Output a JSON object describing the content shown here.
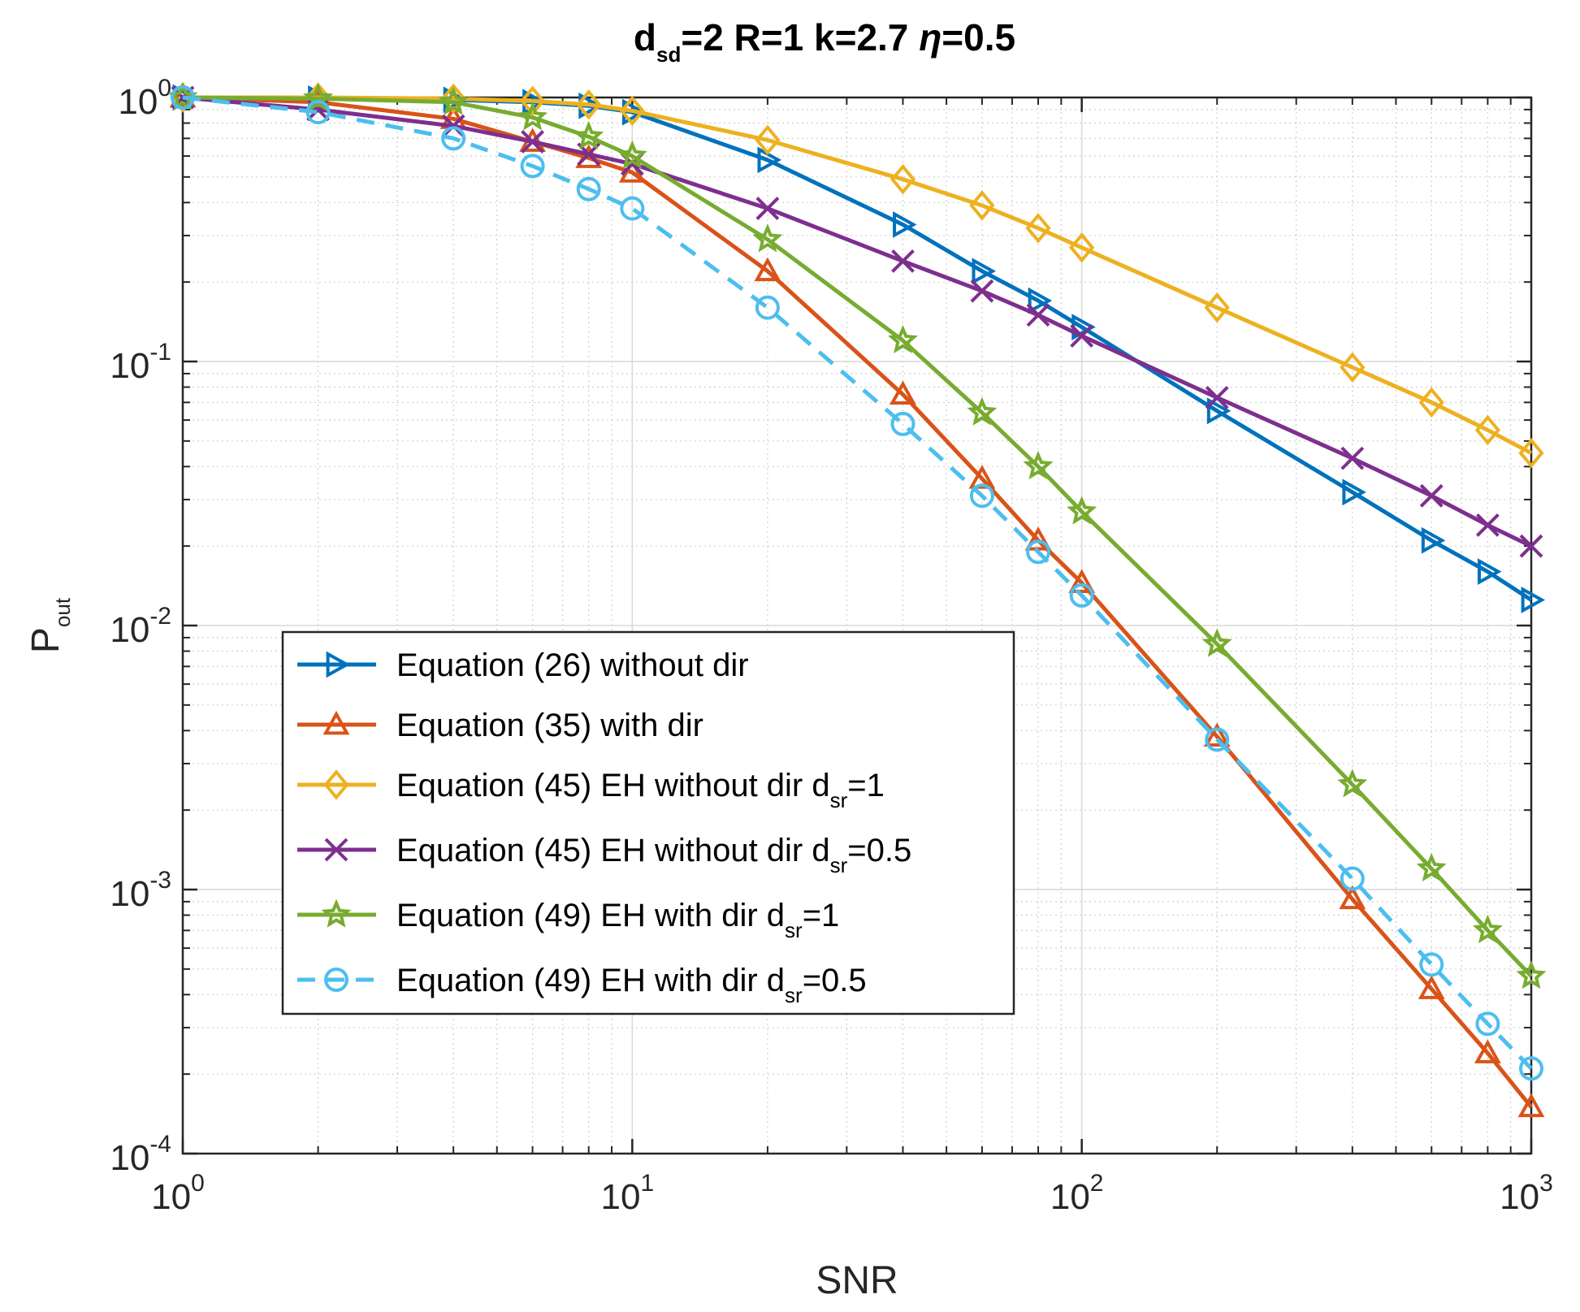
{
  "chart_data": {
    "type": "line",
    "title": {
      "parts": [
        {
          "text": "d",
          "style": "normal"
        },
        {
          "text": "sd",
          "style": "sub"
        },
        {
          "text": "=2 R=1 k=2.7 ",
          "style": "normal"
        },
        {
          "text": "η",
          "style": "italic"
        },
        {
          "text": "=0.5",
          "style": "normal"
        }
      ]
    },
    "xlabel": "SNR",
    "ylabel": {
      "base": "P",
      "sub": "out"
    },
    "xscale": "log",
    "yscale": "log",
    "xlim": [
      1,
      1000
    ],
    "ylim": [
      0.0001,
      1
    ],
    "x_ticks": [
      {
        "value": 1,
        "base": "10",
        "exp": "0"
      },
      {
        "value": 10,
        "base": "10",
        "exp": "1"
      },
      {
        "value": 100,
        "base": "10",
        "exp": "2"
      },
      {
        "value": 1000,
        "base": "10",
        "exp": "3"
      }
    ],
    "y_ticks": [
      {
        "value": 1,
        "base": "10",
        "exp": "0"
      },
      {
        "value": 0.1,
        "base": "10",
        "exp": "-1"
      },
      {
        "value": 0.01,
        "base": "10",
        "exp": "-2"
      },
      {
        "value": 0.001,
        "base": "10",
        "exp": "-3"
      },
      {
        "value": 0.0001,
        "base": "10",
        "exp": "-4"
      }
    ],
    "grid": true,
    "minor_grid": true,
    "legend_position": "lower-left",
    "x": [
      1,
      2,
      4,
      6,
      8,
      10,
      20,
      40,
      60,
      80,
      100,
      200,
      400,
      600,
      800,
      1000
    ],
    "series": [
      {
        "name": "Equation (26) without dir",
        "legend_parts": [
          {
            "text": "Equation (26) without dir",
            "style": "normal"
          }
        ],
        "color": "#0072BD",
        "marker": "triangle-right",
        "dashed": false,
        "values": [
          1.0,
          0.99,
          0.98,
          0.96,
          0.93,
          0.88,
          0.58,
          0.33,
          0.22,
          0.17,
          0.135,
          0.065,
          0.032,
          0.021,
          0.016,
          0.0125
        ]
      },
      {
        "name": "Equation (35) with dir",
        "legend_parts": [
          {
            "text": "Equation (35) with dir",
            "style": "normal"
          }
        ],
        "color": "#D95319",
        "marker": "triangle-up",
        "dashed": false,
        "values": [
          1.0,
          0.96,
          0.83,
          0.68,
          0.59,
          0.52,
          0.22,
          0.075,
          0.036,
          0.021,
          0.0145,
          0.0038,
          0.00092,
          0.00042,
          0.00024,
          0.00015
        ]
      },
      {
        "name": "Equation (45) EH without dir dsr=1",
        "legend_parts": [
          {
            "text": "Equation (45) EH without dir d",
            "style": "normal"
          },
          {
            "text": "sr",
            "style": "sub"
          },
          {
            "text": "=1",
            "style": "normal"
          }
        ],
        "color": "#EDB120",
        "marker": "diamond",
        "dashed": false,
        "values": [
          1.0,
          1.0,
          0.99,
          0.97,
          0.94,
          0.89,
          0.69,
          0.49,
          0.39,
          0.32,
          0.27,
          0.16,
          0.095,
          0.07,
          0.055,
          0.045
        ]
      },
      {
        "name": "Equation (45) EH without dir dsr=0.5",
        "legend_parts": [
          {
            "text": "Equation (45) EH without dir d",
            "style": "normal"
          },
          {
            "text": "sr",
            "style": "sub"
          },
          {
            "text": "=0.5",
            "style": "normal"
          }
        ],
        "color": "#7E2F8E",
        "marker": "x",
        "dashed": false,
        "values": [
          1.0,
          0.9,
          0.78,
          0.68,
          0.61,
          0.56,
          0.38,
          0.24,
          0.185,
          0.15,
          0.125,
          0.073,
          0.043,
          0.031,
          0.024,
          0.02
        ]
      },
      {
        "name": "Equation (49) EH with dir dsr=1",
        "legend_parts": [
          {
            "text": "Equation (49) EH with dir d",
            "style": "normal"
          },
          {
            "text": "sr",
            "style": "sub"
          },
          {
            "text": "=1",
            "style": "normal"
          }
        ],
        "color": "#77AC30",
        "marker": "star",
        "dashed": false,
        "values": [
          1.0,
          0.99,
          0.96,
          0.84,
          0.71,
          0.6,
          0.29,
          0.12,
          0.064,
          0.04,
          0.027,
          0.0085,
          0.0025,
          0.0012,
          0.0007,
          0.00047
        ]
      },
      {
        "name": "Equation (49) EH with dir dsr=0.5",
        "legend_parts": [
          {
            "text": "Equation (49) EH with dir d",
            "style": "normal"
          },
          {
            "text": "sr",
            "style": "sub"
          },
          {
            "text": "=0.5",
            "style": "normal"
          }
        ],
        "color": "#4DBEEE",
        "marker": "circle",
        "dashed": true,
        "values": [
          1.0,
          0.88,
          0.7,
          0.55,
          0.45,
          0.38,
          0.16,
          0.058,
          0.031,
          0.019,
          0.013,
          0.0037,
          0.0011,
          0.00052,
          0.00031,
          0.00021
        ]
      }
    ]
  }
}
